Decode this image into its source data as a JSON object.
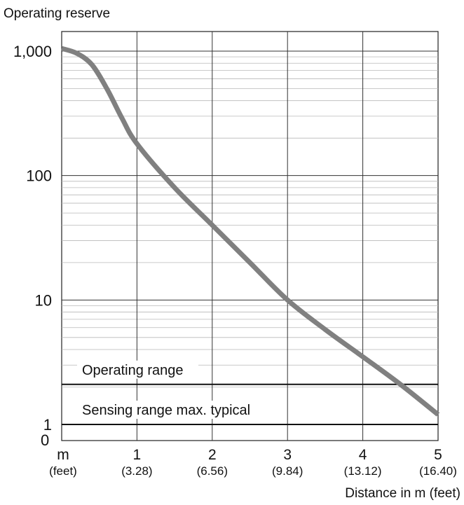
{
  "chart_data": {
    "type": "line",
    "title": "",
    "ylabel": "Operating reserve",
    "xlabel": "Distance in m (feet)",
    "x_unit_label": "m",
    "x_unit_sublabel": "(feet)",
    "y_scale": "log",
    "ylim": [
      1,
      1000
    ],
    "xlim": [
      0,
      5
    ],
    "grid": true,
    "x_ticks": [
      {
        "value": 1,
        "label": "1",
        "sublabel": "(3.28)"
      },
      {
        "value": 2,
        "label": "2",
        "sublabel": "(6.56)"
      },
      {
        "value": 3,
        "label": "3",
        "sublabel": "(9.84)"
      },
      {
        "value": 4,
        "label": "4",
        "sublabel": "(13.12)"
      },
      {
        "value": 5,
        "label": "5",
        "sublabel": "(16.40)"
      }
    ],
    "y_ticks": [
      {
        "value": 1,
        "label": "1"
      },
      {
        "value": 10,
        "label": "10"
      },
      {
        "value": 100,
        "label": "100"
      },
      {
        "value": 1000,
        "label": "1,000"
      }
    ],
    "y_zero_label": "0",
    "reference_lines": [
      {
        "label": "Operating range",
        "y": 2.1
      },
      {
        "label": "Sensing range max. typical",
        "y": 1.0
      }
    ],
    "series": [
      {
        "color": "#808080",
        "x": [
          0.0,
          0.2,
          0.4,
          0.6,
          0.8,
          1.0,
          1.5,
          2.0,
          2.5,
          3.0,
          3.5,
          4.0,
          4.5,
          5.0
        ],
        "y": [
          1050,
          960,
          780,
          500,
          290,
          180,
          80,
          40,
          20,
          10,
          5.8,
          3.5,
          2.1,
          1.2
        ]
      }
    ]
  }
}
